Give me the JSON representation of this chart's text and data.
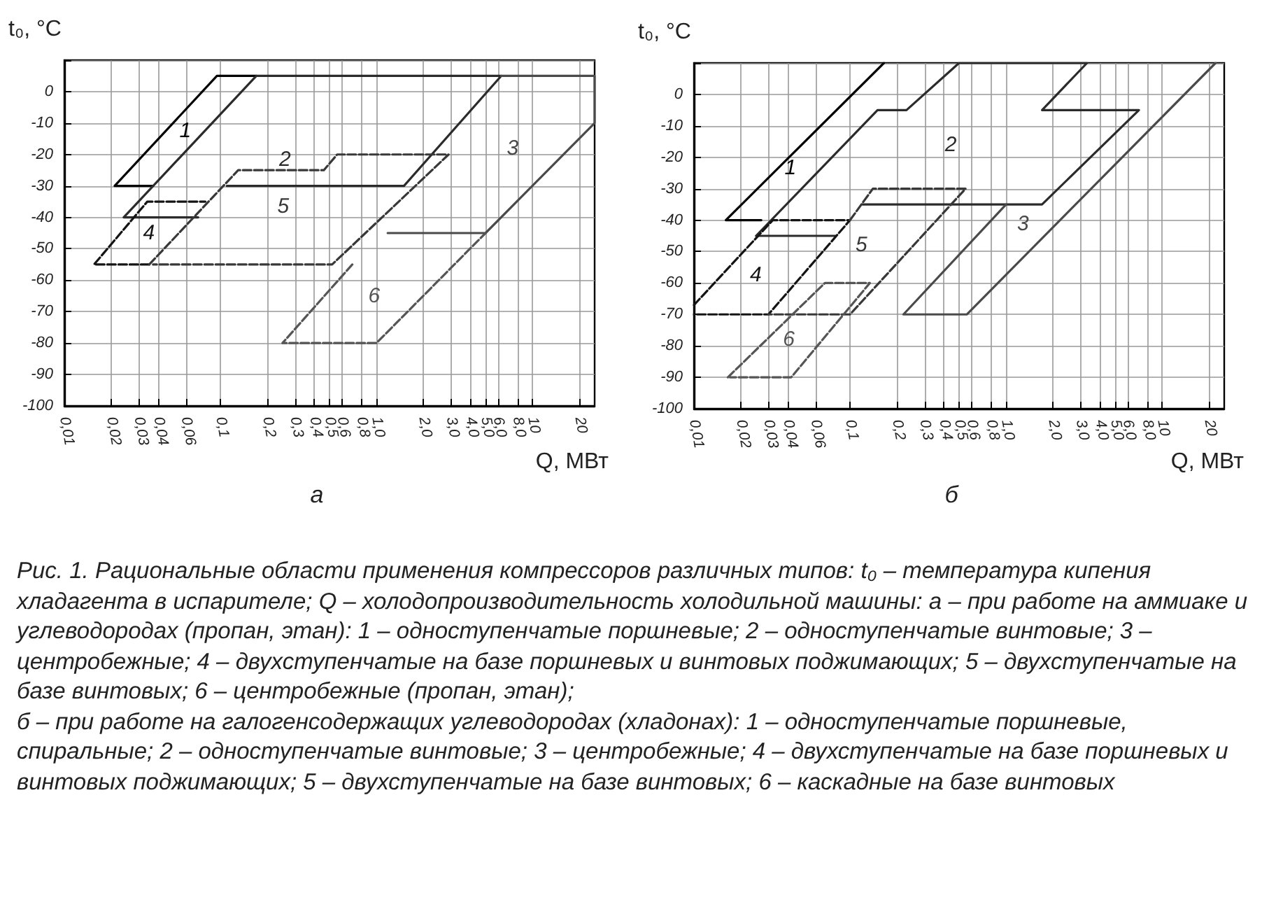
{
  "chart_data": [
    {
      "type": "line",
      "subtitle": "а",
      "xlabel": "Q, МВт",
      "ylabel": "t₀, °C",
      "log": "x",
      "grid": true,
      "xlim": [
        0.01,
        25
      ],
      "ylim": [
        -100,
        10
      ],
      "xticks": [
        {
          "value": 0.01,
          "label": "0,01"
        },
        {
          "value": 0.02,
          "label": "0,02"
        },
        {
          "value": 0.03,
          "label": "0,03"
        },
        {
          "value": 0.04,
          "label": "0,04"
        },
        {
          "value": 0.06,
          "label": "0,06"
        },
        {
          "value": 0.1,
          "label": "0,1"
        },
        {
          "value": 0.2,
          "label": "0,2"
        },
        {
          "value": 0.3,
          "label": "0,3"
        },
        {
          "value": 0.4,
          "label": "0,4"
        },
        {
          "value": 0.5,
          "label": "0,5"
        },
        {
          "value": 0.6,
          "label": "0,6"
        },
        {
          "value": 0.8,
          "label": "0,8"
        },
        {
          "value": 1,
          "label": "1,0"
        },
        {
          "value": 2,
          "label": "2,0"
        },
        {
          "value": 3,
          "label": "3,0"
        },
        {
          "value": 4,
          "label": "4,0"
        },
        {
          "value": 5,
          "label": "5,0"
        },
        {
          "value": 6,
          "label": "6,0"
        },
        {
          "value": 8,
          "label": "8,0"
        },
        {
          "value": 10,
          "label": "10"
        },
        {
          "value": 20,
          "label": "20"
        }
      ],
      "yticks": [
        -100,
        -90,
        -80,
        -70,
        -60,
        -50,
        -40,
        -30,
        -20,
        -10,
        0,
        {
          "value": 10,
          "label": null
        }
      ],
      "series": [
        {
          "name": "1",
          "color": "#000000",
          "line_style": "solid",
          "x": [
            0.037,
            0.021,
            0.095,
            0.17
          ],
          "values": [
            -30,
            -30,
            5,
            5
          ]
        },
        {
          "name": "2",
          "color": "#2b2b2b",
          "line_style": "solid",
          "x": [
            0.11,
            1.5,
            6.3,
            0.17,
            0.024,
            0.072
          ],
          "values": [
            -30,
            -30,
            5,
            5,
            -40,
            -40
          ]
        },
        {
          "name": "3",
          "color": "#4a4a4a",
          "line_style": "solid",
          "x": [
            1.18,
            5,
            25,
            25,
            6.3
          ],
          "values": [
            -45,
            -45,
            -10,
            5,
            5
          ]
        },
        {
          "name": "4",
          "color": "#141414",
          "line_style": "dashed",
          "x": [
            0.035,
            0.0155,
            0.034,
            0.08
          ],
          "values": [
            -55,
            -55,
            -35,
            -35
          ]
        },
        {
          "name": "5",
          "color": "#383838",
          "line_style": "dashed",
          "x": [
            0.035,
            0.13,
            0.46,
            0.56,
            2.9,
            0.52,
            0.037
          ],
          "values": [
            -55,
            -25,
            -25,
            -20,
            -20,
            -55,
            -55
          ]
        },
        {
          "name": "6",
          "color": "#555555",
          "line_style": "dashed",
          "x": [
            0.7,
            0.25,
            1,
            5
          ],
          "values": [
            -55,
            -80,
            -80,
            -45
          ]
        }
      ],
      "annotations": [
        "Рис. 1. Рациональные области применения компрессоров различных типов: t₀ – температура кипения хладагента в испарителе; Q – холодопроизводительность холодильной машины: а – при работе на аммиаке и углеводородах (пропан, этан): 1 – одноступенчатые поршневые; 2 – одноступенчатые винтовые; 3 – центробежные; 4 – двухступенчатые на базе поршневых и винтовых поджимающих; 5 – двухступенчатые на базе винтовых; 6 – центробежные (пропан, этан);",
        "б – при работе на галогенсодержащих углеводородах (хладонах): 1 – одноступенчатые поршневые, спиральные; 2 – одноступенчатые винтовые; 3 – центробежные; 4 – двухступенчатые на базе поршневых и винтовых поджимающих; 5 – двухступенчатые на базе винтовых; 6 – каскадные на базе винтовых"
      ]
    },
    {
      "type": "line",
      "subtitle": "б",
      "xlabel": "Q, МВт",
      "ylabel": "t₀, °C",
      "log": "x",
      "grid": true,
      "xlim": [
        0.01,
        25
      ],
      "ylim": [
        -100,
        10
      ],
      "xticks": [
        {
          "value": 0.01,
          "label": "0,01"
        },
        {
          "value": 0.02,
          "label": "0,02"
        },
        {
          "value": 0.03,
          "label": "0,03"
        },
        {
          "value": 0.04,
          "label": "0,04"
        },
        {
          "value": 0.06,
          "label": "0,06"
        },
        {
          "value": 0.1,
          "label": "0,1"
        },
        {
          "value": 0.2,
          "label": "0,2"
        },
        {
          "value": 0.3,
          "label": "0,3"
        },
        {
          "value": 0.4,
          "label": "0,4"
        },
        {
          "value": 0.5,
          "label": "0,5"
        },
        {
          "value": 0.6,
          "label": "0,6"
        },
        {
          "value": 0.8,
          "label": "0,8"
        },
        {
          "value": 1,
          "label": "1,0"
        },
        {
          "value": 2,
          "label": "2,0"
        },
        {
          "value": 3,
          "label": "3,0"
        },
        {
          "value": 4,
          "label": "4,0"
        },
        {
          "value": 5,
          "label": "5,0"
        },
        {
          "value": 6,
          "label": "6,0"
        },
        {
          "value": 8,
          "label": "8,0"
        },
        {
          "value": 10,
          "label": "10"
        },
        {
          "value": 20,
          "label": "20"
        }
      ],
      "yticks": [
        -100,
        -90,
        -80,
        -70,
        -60,
        -50,
        -40,
        -30,
        -20,
        -10,
        0,
        {
          "value": 10,
          "label": null
        }
      ],
      "series": [
        {
          "name": "1",
          "color": "#000000",
          "line_style": "solid",
          "x": [
            0.027,
            0.016,
            0.165
          ],
          "values": [
            -40,
            -40,
            10
          ]
        },
        {
          "name": "2",
          "color": "#2b2b2b",
          "line_style": "solid",
          "x": [
            0.12,
            1.7,
            7.1,
            1.7,
            3.3,
            0.5,
            0.23,
            0.15,
            0.025,
            0.081
          ],
          "values": [
            -35,
            -35,
            -5,
            -5,
            10,
            10,
            -5,
            -5,
            -45,
            -45
          ]
        },
        {
          "name": "3",
          "color": "#4a4a4a",
          "line_style": "solid",
          "x": [
            1,
            0.22,
            0.56,
            22
          ],
          "values": [
            -35,
            -70,
            -70,
            10
          ]
        },
        {
          "name": "4",
          "color": "#141414",
          "line_style": "dashed",
          "x": [
            0.01,
            0.032,
            0.1,
            0.03,
            0.01
          ],
          "values": [
            -67,
            -40,
            -40,
            -70,
            -70
          ]
        },
        {
          "name": "5",
          "color": "#383838",
          "line_style": "dashed",
          "x": [
            0.1,
            0.14,
            0.55,
            0.1,
            0.03
          ],
          "values": [
            -40,
            -30,
            -30,
            -70,
            -70
          ]
        },
        {
          "name": "6",
          "color": "#555555",
          "line_style": "dashed",
          "x": [
            0.0165,
            0.069,
            0.134,
            0.042,
            0.017
          ],
          "values": [
            -90,
            -60,
            -60,
            -90,
            -90
          ]
        }
      ]
    }
  ]
}
